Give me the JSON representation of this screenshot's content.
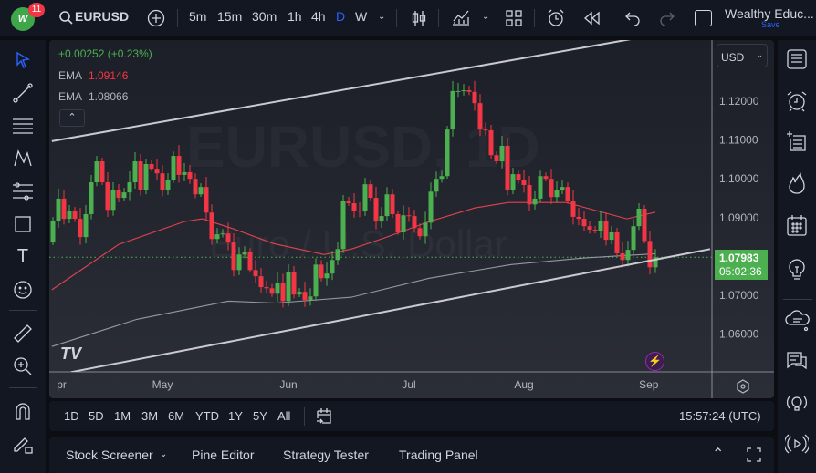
{
  "header": {
    "logo_badge": "11",
    "symbol": "EURUSD",
    "intervals": [
      "5m",
      "15m",
      "30m",
      "1h",
      "4h",
      "D",
      "W"
    ],
    "active_interval": "D",
    "account_name": "Wealthy Educ...",
    "save_label": "Save"
  },
  "legend": {
    "change": "+0.00252 (+0.23%)",
    "ema1_label": "EMA",
    "ema1_value": "1.09146",
    "ema2_label": "EMA",
    "ema2_value": "1.08066"
  },
  "watermark": {
    "line1": "EURUSD, 1D",
    "line2": "Euro / U.S. Dollar"
  },
  "price_scale": {
    "currency": "USD",
    "ticks": [
      "1.12000",
      "1.11000",
      "1.10000",
      "1.09000",
      "1.07000",
      "1.06000"
    ],
    "last_price": "1.07983",
    "countdown": "05:02:36"
  },
  "time_axis": {
    "labels": [
      "pr",
      "May",
      "Jun",
      "Jul",
      "Aug",
      "Sep"
    ]
  },
  "range_bar": {
    "ranges": [
      "1D",
      "5D",
      "1M",
      "3M",
      "6M",
      "YTD",
      "1Y",
      "5Y",
      "All"
    ],
    "clock": "15:57:24 (UTC)"
  },
  "bottom_panel": {
    "tabs": [
      "Stock Screener",
      "Pine Editor",
      "Strategy Tester",
      "Trading Panel"
    ]
  },
  "colors": {
    "up": "#4caf50",
    "down": "#f23645",
    "ema_fast": "#e0434f",
    "ema_slow": "#9598a1",
    "accent": "#2962ff",
    "price_label": "#4caf50"
  },
  "chart_data": {
    "type": "candlestick",
    "symbol": "EURUSD",
    "interval": "D",
    "ylim": [
      1.0515,
      1.1354
    ],
    "first_open": 1.0836,
    "closes": [
      1.0892,
      1.0949,
      1.0897,
      1.0916,
      1.0897,
      1.085,
      1.0909,
      1.0991,
      1.1045,
      1.0991,
      1.092,
      1.097,
      1.0951,
      1.0965,
      1.0991,
      1.1045,
      1.097,
      1.1038,
      1.1026,
      1.1014,
      1.097,
      1.0998,
      1.1059,
      1.101,
      1.1017,
      1.1,
      1.096,
      1.0979,
      1.0913,
      1.0845,
      1.0857,
      1.0859,
      1.0836,
      1.0765,
      1.0805,
      1.0812,
      1.0765,
      1.0749,
      1.0721,
      1.0718,
      1.0704,
      1.0732,
      1.0685,
      1.0761,
      1.0702,
      1.0709,
      1.0688,
      1.0697,
      1.0779,
      1.0744,
      1.0756,
      1.0791,
      1.0819,
      1.0944,
      1.0937,
      1.0918,
      1.0916,
      1.0986,
      1.0951,
      1.089,
      1.0904,
      1.096,
      1.0909,
      1.0862,
      1.0906,
      1.0904,
      1.0873,
      1.0852,
      1.0887,
      1.0967,
      1.1,
      1.1007,
      1.1127,
      1.1226,
      1.1226,
      1.1228,
      1.1224,
      1.1195,
      1.1127,
      1.1125,
      1.1061,
      1.1045,
      1.1085,
      1.0972,
      1.1012,
      1.0996,
      1.0984,
      1.0934,
      1.0949,
      1.1007,
      1.1,
      1.0953,
      1.0972,
      1.0979,
      1.0944,
      1.0902,
      1.0897,
      1.0878,
      1.0869,
      1.0866,
      1.0892,
      1.0843,
      1.0862,
      1.0808,
      1.0791,
      1.0817,
      1.0878,
      1.0923,
      1.084,
      1.0772,
      1.0798
    ],
    "ema_fast": [
      [
        0.8,
        1.0714
      ],
      [
        13,
        1.0831
      ],
      [
        25,
        1.089
      ],
      [
        28.3,
        1.0897
      ],
      [
        34,
        1.0871
      ],
      [
        41.3,
        1.0833
      ],
      [
        50.5,
        1.0805
      ],
      [
        55.5,
        1.0819
      ],
      [
        61.4,
        1.0847
      ],
      [
        69.7,
        1.089
      ],
      [
        78,
        1.0925
      ],
      [
        84.2,
        1.0939
      ],
      [
        94.7,
        1.0939
      ],
      [
        105.8,
        1.0897
      ],
      [
        111,
        1.0914
      ]
    ],
    "ema_slow": [
      [
        0.8,
        1.0568
      ],
      [
        16.3,
        1.0638
      ],
      [
        33,
        1.0685
      ],
      [
        41.7,
        1.068
      ],
      [
        55.5,
        1.0695
      ],
      [
        69.7,
        1.0744
      ],
      [
        84.7,
        1.0779
      ],
      [
        98,
        1.0796
      ],
      [
        111,
        1.0807
      ]
    ],
    "trendlines": [
      [
        [
          0.8,
          1.1097
        ],
        [
          106.7,
          1.136
        ]
      ],
      [
        [
          4.3,
          1.0502
        ],
        [
          121,
          1.0819
        ]
      ]
    ],
    "month_labels": [
      [
        "pr",
        1.7
      ],
      [
        "May",
        21
      ],
      [
        "Jun",
        44
      ],
      [
        "Jul",
        66
      ],
      [
        "Aug",
        87
      ],
      [
        "Sep",
        109.8
      ]
    ]
  }
}
